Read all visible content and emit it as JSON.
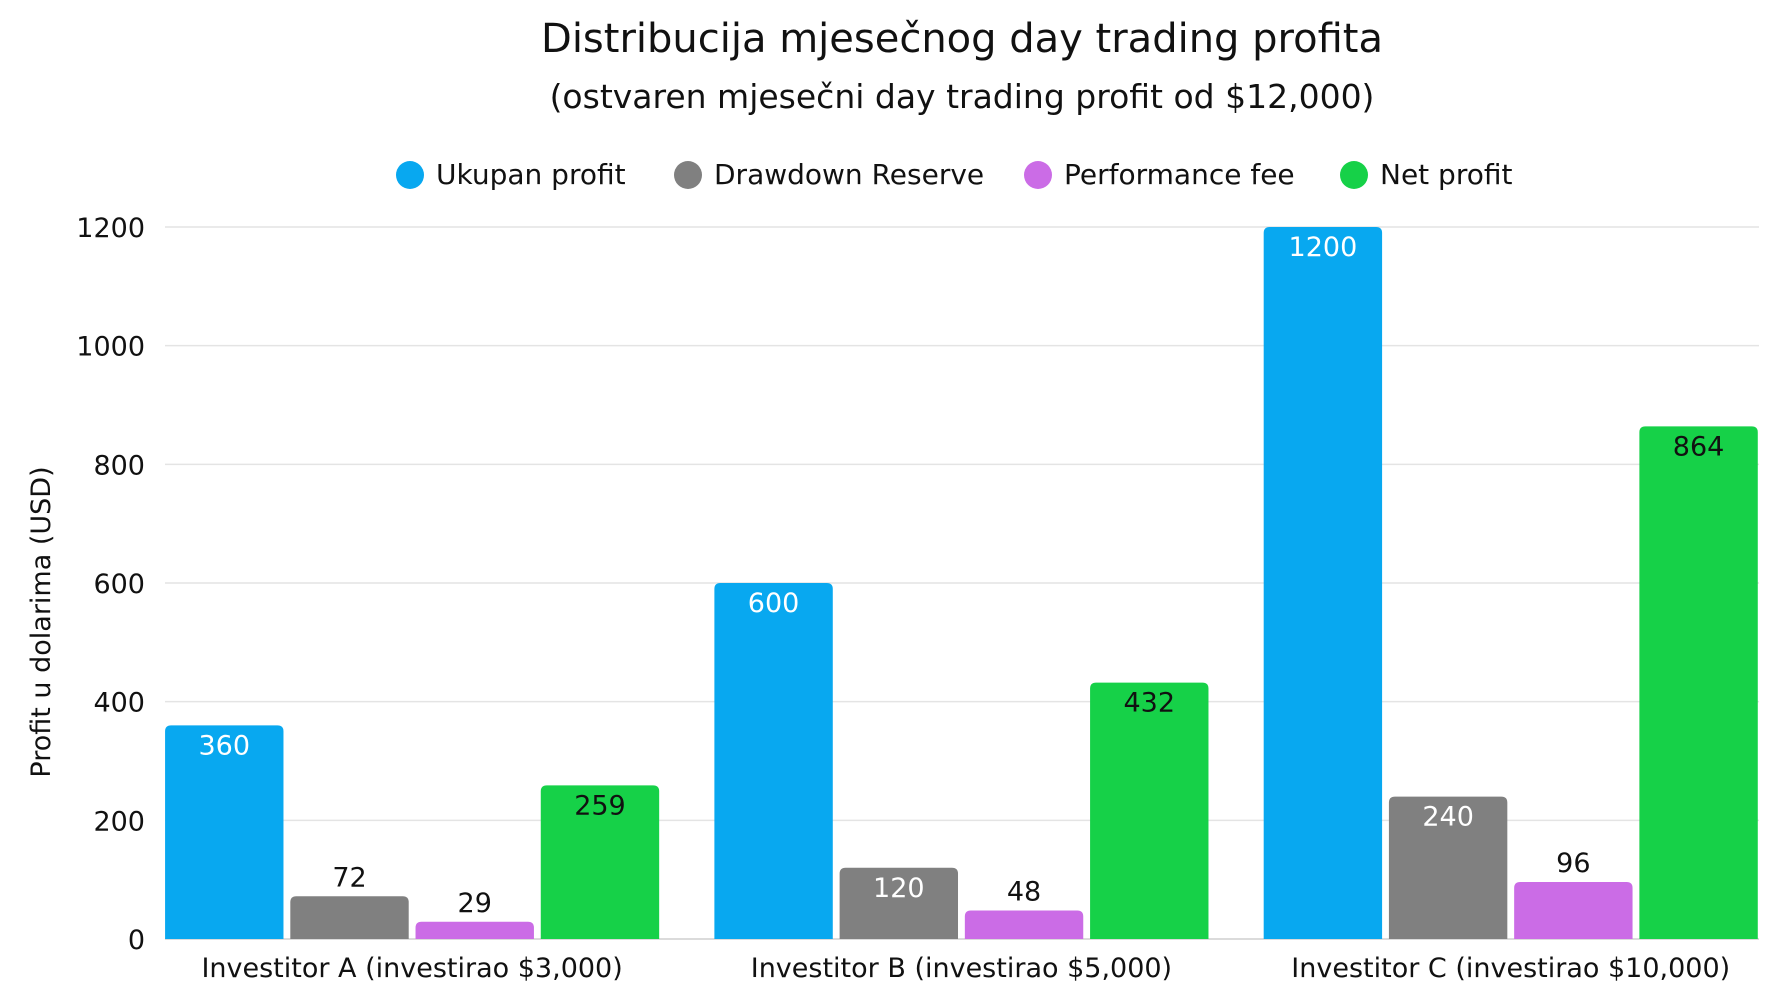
{
  "chart_data": {
    "type": "bar",
    "title": "Distribucija mjesečnog day trading profita",
    "subtitle": "(ostvaren mjesečni day trading profit od $12,000)",
    "xlabel": "",
    "ylabel": "Profit u dolarima (USD)",
    "ylim": [
      0,
      1200
    ],
    "yticks": [
      0,
      200,
      400,
      600,
      800,
      1000,
      1200
    ],
    "grid": true,
    "legend_position": "top",
    "categories": [
      "Investitor A (investirao $3,000)",
      "Investitor B (investirao $5,000)",
      "Investitor C (investirao $10,000)"
    ],
    "series": [
      {
        "name": "Ukupan profit",
        "color": "#08A8F0",
        "values": [
          360,
          600,
          1200
        ]
      },
      {
        "name": "Drawdown Reserve",
        "color": "#808080",
        "values": [
          72,
          120,
          240
        ]
      },
      {
        "name": "Performance fee",
        "color": "#CB6CE6",
        "values": [
          29,
          48,
          96
        ]
      },
      {
        "name": "Net profit",
        "color": "#16D148",
        "values": [
          259,
          432,
          864
        ]
      }
    ]
  }
}
